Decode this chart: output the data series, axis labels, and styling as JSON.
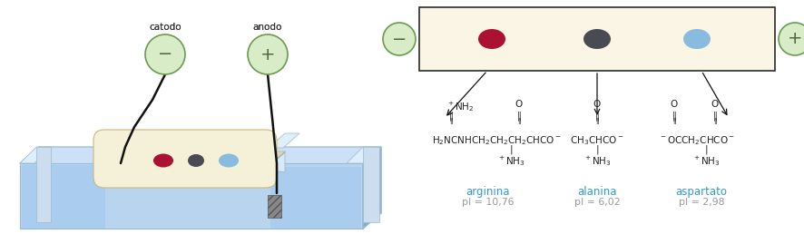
{
  "fig_width": 8.87,
  "fig_height": 2.58,
  "dpi": 100,
  "bg_color": "#ffffff",
  "electrode_bg": "#d8ecc8",
  "electrode_border": "#6a9a50",
  "dark_text": "#222222",
  "blue_text": "#3399cc",
  "gray_text": "#999999",
  "arrow_color": "#111111",
  "box_bg": "#faf5e4",
  "box_border": "#2a2a2a",
  "gel_color": "#f5f0d8",
  "water_face": "#b8d4ee",
  "water_top": "#cce0f8",
  "water_side": "#88aacc",
  "water_dark": "#6699bb",
  "glass_face": "#d8eaf8",
  "glass_edge": "#99bbcc",
  "dot_red": "#aa1133",
  "dot_dark": "#4a4a55",
  "dot_blue": "#88bbdd",
  "names": [
    "arginina",
    "alanina",
    "aspartato"
  ],
  "pi_values": [
    "pI = 10,76",
    "pI = 6,02",
    "pI = 2,98"
  ]
}
